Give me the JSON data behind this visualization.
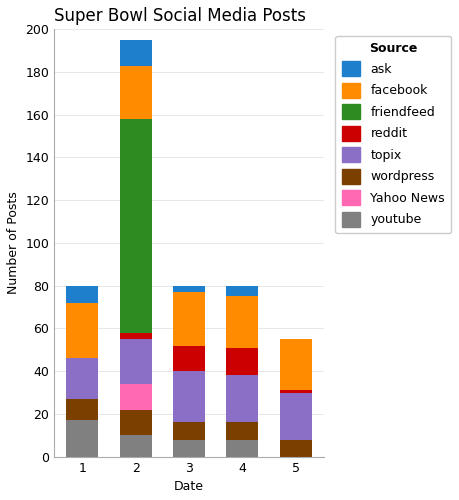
{
  "title": "Super Bowl Social Media Posts",
  "xlabel": "Date",
  "ylabel": "Number of Posts",
  "categories": [
    "1",
    "2",
    "3",
    "4",
    "5"
  ],
  "ylim": [
    0,
    200
  ],
  "yticks": [
    0,
    20,
    40,
    60,
    80,
    100,
    120,
    140,
    160,
    180,
    200
  ],
  "colors": {
    "youtube": "#808080",
    "wordpress": "#7B3F00",
    "Yahoo News": "#FF69B4",
    "topix": "#8B6FC6",
    "reddit": "#CC0000",
    "friendfeed": "#2E8B22",
    "facebook": "#FF8C00",
    "ask": "#1E7FCC"
  },
  "data": {
    "youtube": [
      17,
      10,
      8,
      8,
      0
    ],
    "wordpress": [
      10,
      12,
      8,
      8,
      8
    ],
    "Yahoo News": [
      0,
      12,
      0,
      0,
      0
    ],
    "topix": [
      19,
      21,
      24,
      22,
      22
    ],
    "reddit": [
      0,
      3,
      12,
      13,
      1
    ],
    "friendfeed": [
      0,
      100,
      0,
      0,
      0
    ],
    "facebook": [
      26,
      25,
      25,
      24,
      24
    ],
    "ask": [
      8,
      12,
      3,
      5,
      0
    ]
  },
  "stack_order": [
    "youtube",
    "wordpress",
    "Yahoo News",
    "topix",
    "reddit",
    "friendfeed",
    "facebook",
    "ask"
  ],
  "legend_order": [
    "ask",
    "facebook",
    "friendfeed",
    "reddit",
    "topix",
    "wordpress",
    "Yahoo News",
    "youtube"
  ],
  "background_color": "#ffffff",
  "title_fontsize": 12,
  "axis_fontsize": 9,
  "tick_fontsize": 9,
  "legend_fontsize": 9,
  "bar_width": 0.6
}
